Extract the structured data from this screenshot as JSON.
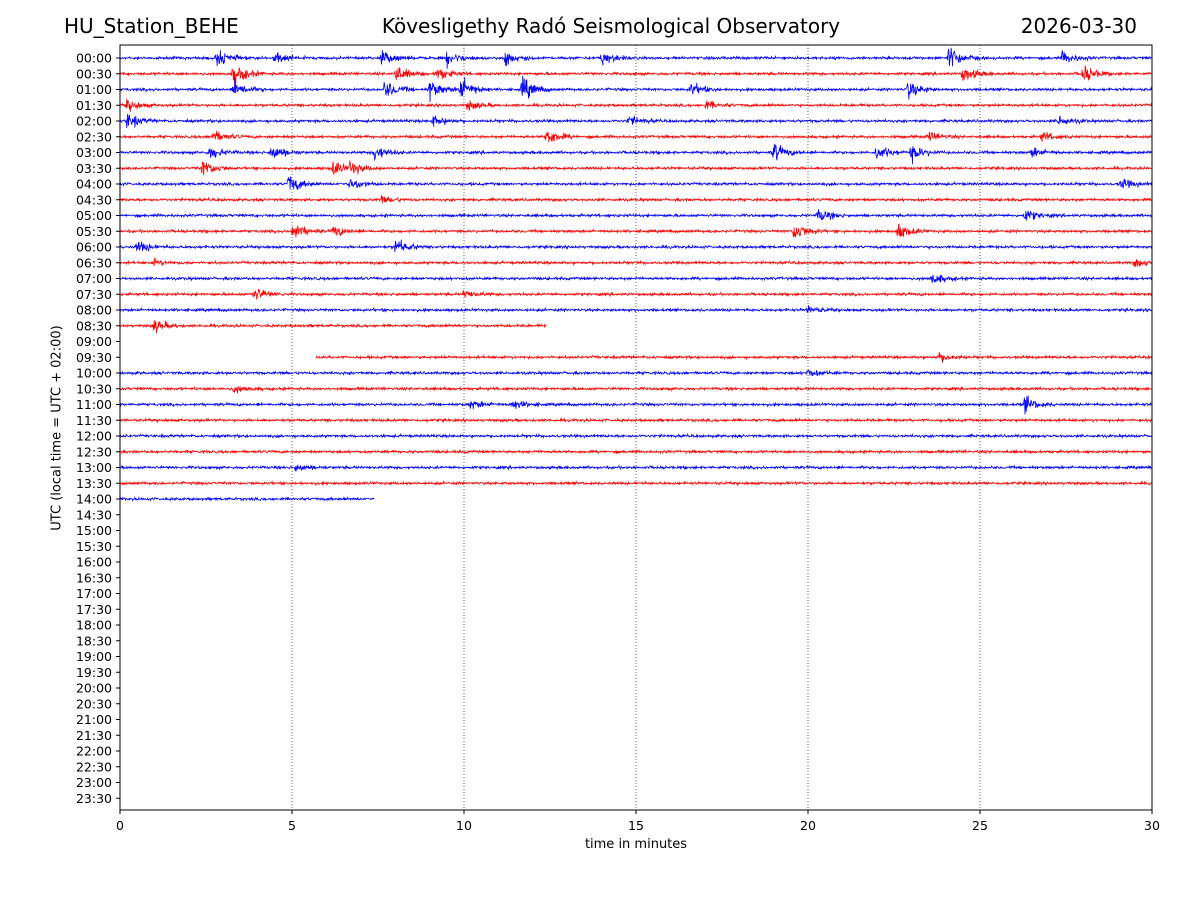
{
  "header": {
    "station": "HU_Station_BEHE",
    "title": "Kövesligethy Radó Seismological Observatory",
    "date": "2026-03-30"
  },
  "chart_data": {
    "type": "line",
    "title": "Kövesligethy Radó Seismological Observatory",
    "xlabel": "time in minutes",
    "ylabel": "UTC (local time = UTC + 02:00)",
    "xlim": [
      0,
      30
    ],
    "x_ticks": [
      0,
      5,
      10,
      15,
      20,
      25,
      30
    ],
    "x_gridlines": [
      5,
      10,
      15,
      20,
      25
    ],
    "grid": "vertical dotted",
    "colors": {
      "even_rows": "#0000ff",
      "odd_rows": "#ff0000"
    },
    "row_labels": [
      "00:00",
      "00:30",
      "01:00",
      "01:30",
      "02:00",
      "02:30",
      "03:00",
      "03:30",
      "04:00",
      "04:30",
      "05:00",
      "05:30",
      "06:00",
      "06:30",
      "07:00",
      "07:30",
      "08:00",
      "08:30",
      "09:00",
      "09:30",
      "10:00",
      "10:30",
      "11:00",
      "11:30",
      "12:00",
      "12:30",
      "13:00",
      "13:30",
      "14:00",
      "14:30",
      "15:00",
      "15:30",
      "16:00",
      "16:30",
      "17:00",
      "17:30",
      "18:00",
      "18:30",
      "19:00",
      "19:30",
      "20:00",
      "20:30",
      "21:00",
      "21:30",
      "22:00",
      "22:30",
      "23:00",
      "23:30"
    ],
    "series": [
      {
        "row": "00:00",
        "start": 0,
        "end": 30,
        "events": [
          [
            2.8,
            1.6
          ],
          [
            4.5,
            1.2
          ],
          [
            7.6,
            1.4
          ],
          [
            9.5,
            1.5
          ],
          [
            11.2,
            1.3
          ],
          [
            14.0,
            1.4
          ],
          [
            24.1,
            2.4
          ],
          [
            27.4,
            1.3
          ]
        ]
      },
      {
        "row": "00:30",
        "start": 0,
        "end": 30,
        "events": [
          [
            3.3,
            2.4
          ],
          [
            8.0,
            1.8
          ],
          [
            9.2,
            1.4
          ],
          [
            24.5,
            1.6
          ],
          [
            28.0,
            1.8
          ]
        ]
      },
      {
        "row": "01:00",
        "start": 0,
        "end": 30,
        "events": [
          [
            3.3,
            1.8
          ],
          [
            7.7,
            1.8
          ],
          [
            9.0,
            2.0
          ],
          [
            9.9,
            2.6
          ],
          [
            11.7,
            2.4
          ],
          [
            16.6,
            1.3
          ],
          [
            22.9,
            1.8
          ]
        ]
      },
      {
        "row": "01:30",
        "start": 0,
        "end": 30,
        "events": [
          [
            0.2,
            1.2
          ],
          [
            10.1,
            1.0
          ],
          [
            17.0,
            0.9
          ]
        ]
      },
      {
        "row": "02:00",
        "start": 0,
        "end": 30,
        "events": [
          [
            0.2,
            1.6
          ],
          [
            9.1,
            1.1
          ],
          [
            14.8,
            1.0
          ],
          [
            27.3,
            1.0
          ]
        ]
      },
      {
        "row": "02:30",
        "start": 0,
        "end": 30,
        "events": [
          [
            2.7,
            1.3
          ],
          [
            12.4,
            1.8
          ],
          [
            23.5,
            1.0
          ],
          [
            26.8,
            1.0
          ]
        ]
      },
      {
        "row": "03:00",
        "start": 0,
        "end": 30,
        "events": [
          [
            2.6,
            1.3
          ],
          [
            4.4,
            1.6
          ],
          [
            7.4,
            1.6
          ],
          [
            19.0,
            1.8
          ],
          [
            22.0,
            1.6
          ],
          [
            23.0,
            1.6
          ],
          [
            26.5,
            1.0
          ]
        ]
      },
      {
        "row": "03:30",
        "start": 0,
        "end": 30,
        "events": [
          [
            2.4,
            1.8
          ],
          [
            6.2,
            1.5
          ],
          [
            6.7,
            1.2
          ]
        ]
      },
      {
        "row": "04:00",
        "start": 0,
        "end": 30,
        "events": [
          [
            4.9,
            2.0
          ],
          [
            6.7,
            1.2
          ],
          [
            29.1,
            1.0
          ]
        ]
      },
      {
        "row": "04:30",
        "start": 0,
        "end": 30,
        "events": [
          [
            7.6,
            0.8
          ]
        ]
      },
      {
        "row": "05:00",
        "start": 0,
        "end": 30,
        "events": [
          [
            20.3,
            1.3
          ],
          [
            26.3,
            1.2
          ]
        ]
      },
      {
        "row": "05:30",
        "start": 0,
        "end": 30,
        "events": [
          [
            5.0,
            1.8
          ],
          [
            6.2,
            1.2
          ],
          [
            19.6,
            2.0
          ],
          [
            22.6,
            1.6
          ]
        ]
      },
      {
        "row": "06:00",
        "start": 0,
        "end": 30,
        "events": [
          [
            0.5,
            1.2
          ],
          [
            8.0,
            1.6
          ]
        ]
      },
      {
        "row": "06:30",
        "start": 0,
        "end": 30,
        "events": [
          [
            1.0,
            0.6
          ],
          [
            29.5,
            0.8
          ]
        ]
      },
      {
        "row": "07:00",
        "start": 0,
        "end": 30,
        "events": [
          [
            23.6,
            1.2
          ]
        ]
      },
      {
        "row": "07:30",
        "start": 0,
        "end": 30,
        "events": [
          [
            3.9,
            1.5
          ],
          [
            10.0,
            0.8
          ]
        ]
      },
      {
        "row": "08:00",
        "start": 0,
        "end": 30,
        "events": [
          [
            20.0,
            0.8
          ]
        ]
      },
      {
        "row": "08:30",
        "start": 0,
        "end": 12.4,
        "events": [
          [
            1.0,
            1.3
          ]
        ]
      },
      {
        "row": "09:30",
        "start": 5.7,
        "end": 30,
        "events": [
          [
            23.8,
            1.0
          ]
        ]
      },
      {
        "row": "10:00",
        "start": 0,
        "end": 30,
        "events": [
          [
            20.0,
            0.8
          ]
        ]
      },
      {
        "row": "10:30",
        "start": 0,
        "end": 30,
        "events": [
          [
            3.3,
            0.8
          ]
        ]
      },
      {
        "row": "11:00",
        "start": 0,
        "end": 30,
        "events": [
          [
            10.2,
            1.0
          ],
          [
            11.4,
            1.0
          ],
          [
            26.3,
            1.6
          ]
        ]
      },
      {
        "row": "11:30",
        "start": 0,
        "end": 30,
        "events": []
      },
      {
        "row": "12:00",
        "start": 0,
        "end": 30,
        "events": []
      },
      {
        "row": "12:30",
        "start": 0,
        "end": 30,
        "events": []
      },
      {
        "row": "13:00",
        "start": 0,
        "end": 30,
        "events": [
          [
            5.1,
            0.8
          ]
        ]
      },
      {
        "row": "13:30",
        "start": 0,
        "end": 30,
        "events": []
      },
      {
        "row": "14:00",
        "start": 0,
        "end": 7.4,
        "events": []
      }
    ]
  }
}
